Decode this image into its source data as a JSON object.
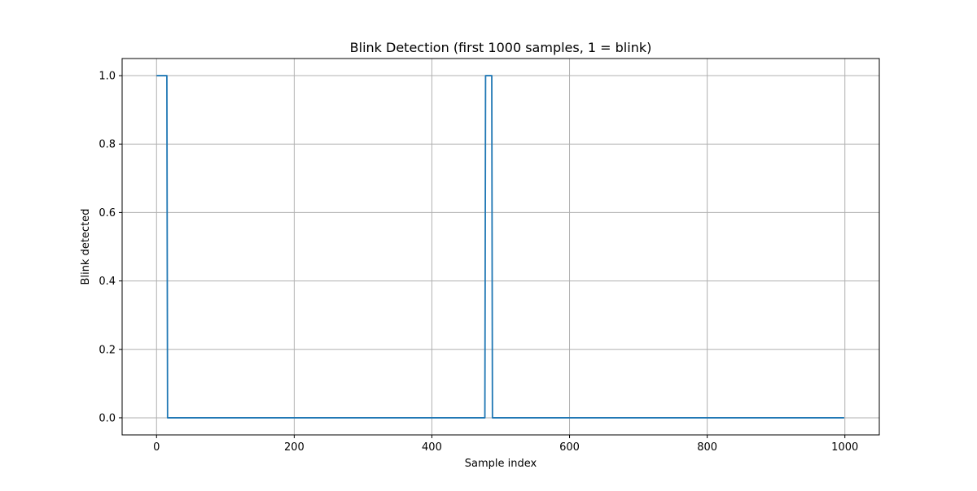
{
  "chart_data": {
    "type": "line",
    "title": "Blink Detection (first 1000 samples, 1 = blink)",
    "xlabel": "Sample index",
    "ylabel": "Blink detected",
    "xlim": [
      -50,
      1050
    ],
    "ylim": [
      -0.05,
      1.05
    ],
    "xticks": [
      0,
      200,
      400,
      600,
      800,
      1000
    ],
    "xtick_labels": [
      "0",
      "200",
      "400",
      "600",
      "800",
      "1000"
    ],
    "yticks": [
      0.0,
      0.2,
      0.4,
      0.6,
      0.8,
      1.0
    ],
    "ytick_labels": [
      "0.0",
      "0.2",
      "0.4",
      "0.6",
      "0.8",
      "1.0"
    ],
    "grid": true,
    "series": [
      {
        "color": "#1f77b4",
        "x": [
          0,
          15,
          16,
          477,
          478,
          487,
          488,
          999
        ],
        "y": [
          1,
          1,
          0,
          0,
          1,
          1,
          0,
          0
        ]
      }
    ]
  }
}
